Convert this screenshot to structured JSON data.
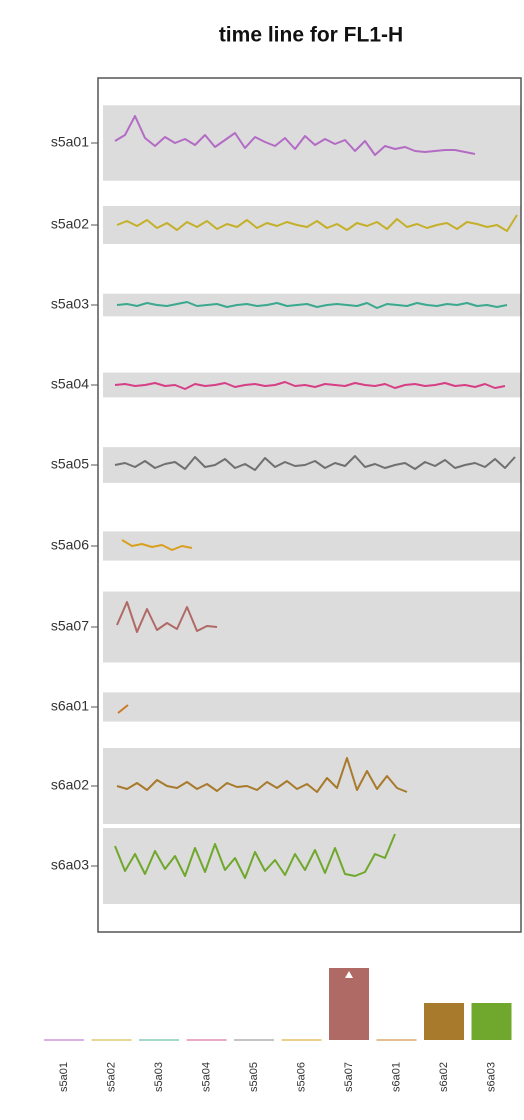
{
  "chart_data": [
    {
      "type": "timeline",
      "title": "time line for FL1-H",
      "series": [
        {
          "name": "s5a01",
          "color": "#b36cc4",
          "values": [
            2,
            8,
            27,
            5,
            -3,
            6,
            0,
            4,
            -2,
            8,
            -4,
            3,
            10,
            -5,
            6,
            1,
            -3,
            5,
            -6,
            7,
            -2,
            4,
            -1,
            3,
            -8,
            2,
            -12,
            -3,
            -6,
            -4,
            -8,
            -9,
            -8,
            -7,
            -7,
            -9,
            -11
          ]
        },
        {
          "name": "s5a02",
          "color": "#c4b02a",
          "values": [
            0,
            4,
            -1,
            5,
            -3,
            2,
            -5,
            3,
            -2,
            4,
            -4,
            1,
            -2,
            5,
            -3,
            2,
            -1,
            3,
            0,
            -2,
            4,
            -3,
            1,
            -5,
            2,
            -1,
            3,
            -4,
            6,
            -2,
            1,
            -3,
            0,
            2,
            -4,
            3,
            1,
            -2,
            0,
            -6,
            10
          ]
        },
        {
          "name": "s5a03",
          "color": "#3aa98e",
          "values": [
            0,
            1,
            -1,
            2,
            0,
            -1,
            1,
            3,
            -1,
            0,
            1,
            -2,
            0,
            1,
            -1,
            0,
            2,
            -1,
            0,
            1,
            -2,
            0,
            1,
            0,
            -1,
            2,
            -3,
            1,
            0,
            -1,
            2,
            0,
            -1,
            1,
            0,
            2,
            -1,
            0,
            -2,
            0
          ]
        },
        {
          "name": "s5a04",
          "color": "#d63f86",
          "values": [
            0,
            1,
            -1,
            0,
            2,
            -1,
            0,
            -4,
            1,
            -1,
            0,
            2,
            -2,
            0,
            1,
            -1,
            0,
            3,
            -1,
            0,
            -2,
            1,
            0,
            -1,
            2,
            0,
            -1,
            1,
            -3,
            0,
            1,
            -1,
            0,
            2,
            -1,
            0,
            -2,
            1,
            -3,
            -1
          ]
        },
        {
          "name": "s5a05",
          "color": "#707070",
          "values": [
            0,
            2,
            -2,
            4,
            -3,
            1,
            3,
            -4,
            8,
            -2,
            0,
            6,
            -3,
            1,
            -5,
            7,
            -2,
            3,
            -1,
            0,
            4,
            -3,
            2,
            -1,
            9,
            -2,
            1,
            -3,
            0,
            2,
            -4,
            3,
            -1,
            5,
            -3,
            0,
            2,
            -2,
            6,
            -3,
            8
          ]
        },
        {
          "name": "s5a06",
          "color": "#d9a020",
          "values": [
            6,
            0,
            2,
            -1,
            1,
            -4,
            0,
            -2
          ]
        },
        {
          "name": "s5a07",
          "color": "#b06a66",
          "values": [
            2,
            25,
            -5,
            18,
            -3,
            4,
            -2,
            20,
            -4,
            1,
            0
          ]
        },
        {
          "name": "s6a01",
          "color": "#cc7a2a",
          "values": [
            -6,
            2
          ]
        },
        {
          "name": "s6a02",
          "color": "#a87a2c",
          "values": [
            0,
            -3,
            3,
            -4,
            6,
            0,
            -2,
            4,
            -3,
            2,
            -5,
            3,
            -1,
            0,
            -4,
            4,
            -2,
            5,
            -3,
            2,
            -6,
            8,
            -2,
            28,
            -4,
            15,
            -3,
            10,
            -2,
            -6
          ]
        },
        {
          "name": "s6a03",
          "color": "#6fa82c",
          "values": [
            20,
            -5,
            12,
            -8,
            15,
            -3,
            10,
            -10,
            18,
            -6,
            22,
            -4,
            8,
            -12,
            14,
            -5,
            6,
            -9,
            12,
            -4,
            16,
            -7,
            18,
            -8,
            -10,
            -6,
            12,
            8,
            32
          ]
        }
      ]
    },
    {
      "type": "bar",
      "categories": [
        "s5a01",
        "s5a02",
        "s5a03",
        "s5a04",
        "s5a05",
        "s5a06",
        "s5a07",
        "s6a01",
        "s6a02",
        "s6a03"
      ],
      "values": [
        1,
        1,
        1,
        1,
        1,
        1,
        72,
        1,
        37,
        37
      ],
      "colors": [
        "#dcb3e3",
        "#e3d996",
        "#a6d9cc",
        "#eba9c8",
        "#c4c4c4",
        "#eed08e",
        "#b06a66",
        "#e6c08e",
        "#a87a2c",
        "#6fa82c"
      ]
    }
  ]
}
